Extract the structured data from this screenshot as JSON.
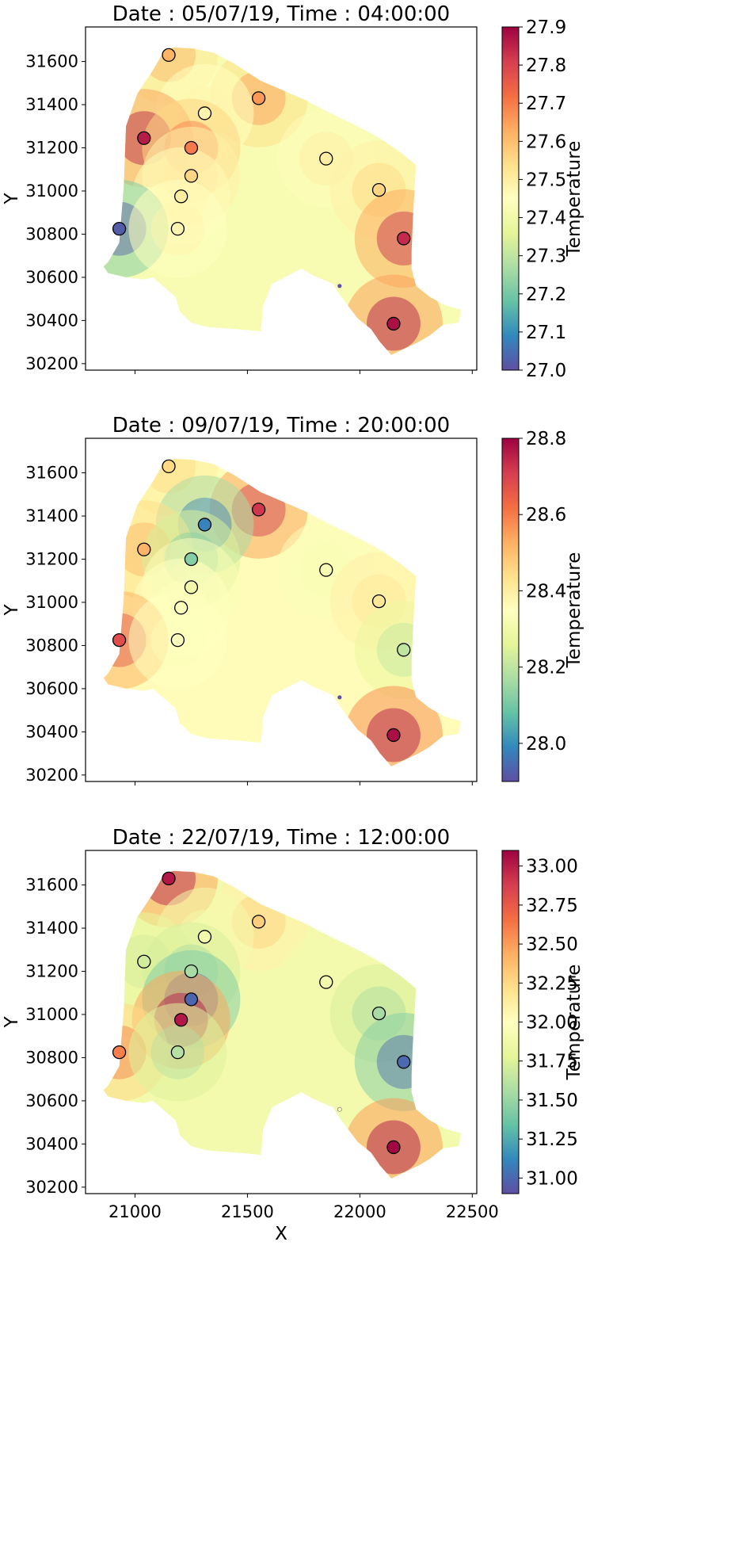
{
  "chart_data": [
    {
      "type": "heatmap",
      "title": "Date : 05/07/19, Time : 04:00:00",
      "xlabel": "",
      "ylabel": "Y",
      "colorbar_label": "Temperature",
      "xlim": [
        20780,
        22520
      ],
      "ylim": [
        30170,
        31760
      ],
      "x_ticks": [
        21000,
        21500,
        22000,
        22500
      ],
      "y_ticks": [
        30200,
        30400,
        30600,
        30800,
        31000,
        31200,
        31400,
        31600
      ],
      "x_tick_labels_shown": false,
      "colorbar": {
        "min": 27.0,
        "max": 27.9,
        "ticks": [
          27.0,
          27.1,
          27.2,
          27.3,
          27.4,
          27.5,
          27.6,
          27.7,
          27.8,
          27.9
        ],
        "tick_labels": [
          "27.0",
          "27.1",
          "27.2",
          "27.3",
          "27.4",
          "27.5",
          "27.6",
          "27.7",
          "27.8",
          "27.9"
        ]
      },
      "stations": [
        {
          "x": 21150,
          "y": 31630,
          "value": 27.62
        },
        {
          "x": 21550,
          "y": 31430,
          "value": 27.66
        },
        {
          "x": 21310,
          "y": 31360,
          "value": 27.48
        },
        {
          "x": 21040,
          "y": 31245,
          "value": 27.86
        },
        {
          "x": 21250,
          "y": 31200,
          "value": 27.7
        },
        {
          "x": 21850,
          "y": 31150,
          "value": 27.5
        },
        {
          "x": 21250,
          "y": 31070,
          "value": 27.56
        },
        {
          "x": 21205,
          "y": 30975,
          "value": 27.5
        },
        {
          "x": 22085,
          "y": 31005,
          "value": 27.56
        },
        {
          "x": 20930,
          "y": 30825,
          "value": 27.02
        },
        {
          "x": 21190,
          "y": 30825,
          "value": 27.48
        },
        {
          "x": 22195,
          "y": 30780,
          "value": 27.84
        },
        {
          "x": 22150,
          "y": 30385,
          "value": 27.88
        }
      ],
      "marker": {
        "x": 21910,
        "y": 30560,
        "value": 27.0
      }
    },
    {
      "type": "heatmap",
      "title": "Date : 09/07/19, Time : 20:00:00",
      "xlabel": "",
      "ylabel": "Y",
      "colorbar_label": "Temperature",
      "xlim": [
        20780,
        22520
      ],
      "ylim": [
        30170,
        31760
      ],
      "x_ticks": [
        21000,
        21500,
        22000,
        22500
      ],
      "y_ticks": [
        30200,
        30400,
        30600,
        30800,
        31000,
        31200,
        31400,
        31600
      ],
      "x_tick_labels_shown": false,
      "colorbar": {
        "min": 27.9,
        "max": 28.8,
        "ticks": [
          28.0,
          28.2,
          28.4,
          28.6,
          28.8
        ],
        "tick_labels": [
          "28.0",
          "28.2",
          "28.4",
          "28.6",
          "28.8"
        ]
      },
      "stations": [
        {
          "x": 21150,
          "y": 31630,
          "value": 28.45
        },
        {
          "x": 21550,
          "y": 31430,
          "value": 28.72
        },
        {
          "x": 21310,
          "y": 31360,
          "value": 27.98
        },
        {
          "x": 21040,
          "y": 31245,
          "value": 28.52
        },
        {
          "x": 21250,
          "y": 31200,
          "value": 28.12
        },
        {
          "x": 21850,
          "y": 31150,
          "value": 28.32
        },
        {
          "x": 21250,
          "y": 31070,
          "value": 28.3
        },
        {
          "x": 21205,
          "y": 30975,
          "value": 28.34
        },
        {
          "x": 22085,
          "y": 31005,
          "value": 28.42
        },
        {
          "x": 20930,
          "y": 30825,
          "value": 28.68
        },
        {
          "x": 21190,
          "y": 30825,
          "value": 28.34
        },
        {
          "x": 22195,
          "y": 30780,
          "value": 28.2
        },
        {
          "x": 22150,
          "y": 30385,
          "value": 28.78
        }
      ],
      "marker": {
        "x": 21910,
        "y": 30560,
        "value": 27.9
      }
    },
    {
      "type": "heatmap",
      "title": "Date : 22/07/19, Time : 12:00:00",
      "xlabel": "X",
      "ylabel": "Y",
      "colorbar_label": "Temperature",
      "xlim": [
        20780,
        22520
      ],
      "ylim": [
        30170,
        31760
      ],
      "x_ticks": [
        21000,
        21500,
        22000,
        22500
      ],
      "y_ticks": [
        30200,
        30400,
        30600,
        30800,
        31000,
        31200,
        31400,
        31600
      ],
      "x_tick_labels_shown": true,
      "colorbar": {
        "min": 30.9,
        "max": 33.1,
        "ticks": [
          31.0,
          31.25,
          31.5,
          31.75,
          32.0,
          32.25,
          32.5,
          32.75,
          33.0
        ],
        "tick_labels": [
          "31.00",
          "31.25",
          "31.50",
          "31.75",
          "32.00",
          "32.25",
          "32.50",
          "32.75",
          "33.00"
        ]
      },
      "stations": [
        {
          "x": 21150,
          "y": 31630,
          "value": 33.02
        },
        {
          "x": 21550,
          "y": 31430,
          "value": 32.3
        },
        {
          "x": 21310,
          "y": 31360,
          "value": 31.9
        },
        {
          "x": 21040,
          "y": 31245,
          "value": 31.7
        },
        {
          "x": 21250,
          "y": 31200,
          "value": 31.55
        },
        {
          "x": 21850,
          "y": 31150,
          "value": 31.9
        },
        {
          "x": 21250,
          "y": 31070,
          "value": 30.98
        },
        {
          "x": 21205,
          "y": 30975,
          "value": 33.02
        },
        {
          "x": 22085,
          "y": 31005,
          "value": 31.55
        },
        {
          "x": 20930,
          "y": 30825,
          "value": 32.6
        },
        {
          "x": 21190,
          "y": 30825,
          "value": 31.6
        },
        {
          "x": 22195,
          "y": 30780,
          "value": 31.0
        },
        {
          "x": 22150,
          "y": 30385,
          "value": 33.08
        }
      ],
      "marker": {
        "x": 21910,
        "y": 30560,
        "value": 32.0
      }
    }
  ],
  "colors": {
    "colormap": "Spectral_r",
    "colormap_stops": [
      "#5e4fa2",
      "#3288bd",
      "#66c2a5",
      "#abdda4",
      "#e6f598",
      "#ffffbf",
      "#fee08b",
      "#fdae61",
      "#f46d43",
      "#d53e4f",
      "#9e0142"
    ],
    "axes": "#000000",
    "background": "#ffffff"
  }
}
